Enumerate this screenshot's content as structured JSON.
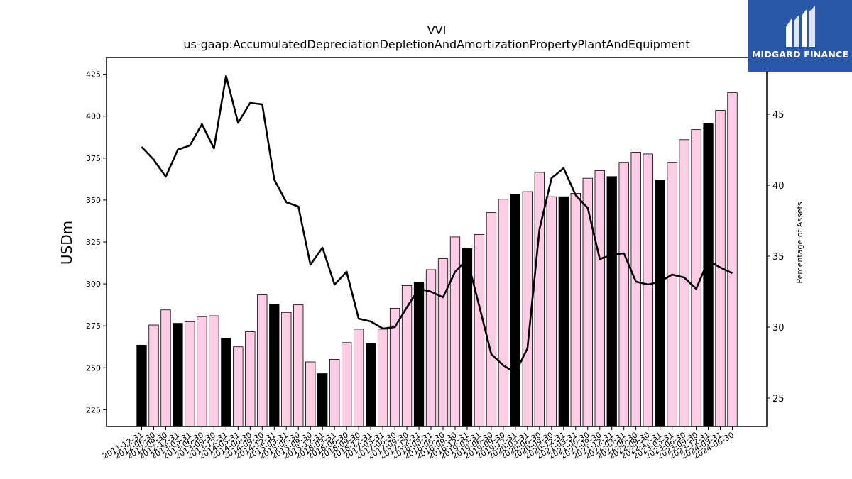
{
  "chart_data": {
    "type": "bar",
    "title": "VVI",
    "subtitle": "us-gaap:AccumulatedDepreciationDepletionAndAmortizationPropertyPlantAndEquipment",
    "ylabel": "USDm",
    "y2label": "Percentage of Assets",
    "ylim": [
      215,
      435
    ],
    "y2lim": [
      23,
      49
    ],
    "yticks": [
      225,
      250,
      275,
      300,
      325,
      350,
      375,
      400,
      425
    ],
    "y2ticks": [
      25,
      30,
      35,
      40,
      45
    ],
    "grid": false,
    "categories": [
      "2011-12-31",
      "2012-06-30",
      "2012-09-30",
      "2012-12-31",
      "2013-03-31",
      "2013-06-30",
      "2013-09-30",
      "2013-12-31",
      "2014-03-31",
      "2014-06-30",
      "2014-09-30",
      "2014-12-31",
      "2015-03-31",
      "2015-06-30",
      "2015-09-30",
      "2015-12-31",
      "2016-03-31",
      "2016-06-30",
      "2016-09-30",
      "2016-12-31",
      "2017-03-31",
      "2017-06-30",
      "2017-09-30",
      "2017-12-31",
      "2018-03-31",
      "2018-06-30",
      "2018-09-30",
      "2018-12-31",
      "2019-03-31",
      "2019-06-30",
      "2019-09-30",
      "2019-12-31",
      "2020-03-31",
      "2020-06-30",
      "2020-09-30",
      "2020-12-31",
      "2021-03-31",
      "2021-06-30",
      "2021-09-30",
      "2021-12-31",
      "2022-03-31",
      "2022-06-30",
      "2022-09-30",
      "2022-12-31",
      "2023-03-31",
      "2023-06-30",
      "2023-09-30",
      "2023-12-31",
      "2024-03-31",
      "2024-06-30"
    ],
    "xticklabels": [
      "2011-12-31",
      "2012-06-30",
      "2012-09-30",
      "2012-12-31",
      "2013-03-31",
      "2013-06-30",
      "2013-09-30",
      "2013-12-31",
      "2014-03-31",
      "2014-06-30",
      "2014-09-30",
      "2014-12-31",
      "2015-03-31",
      "2015-06-30",
      "2015-09-30",
      "2015-12-31",
      "2016-03-31",
      "2016-06-30",
      "2016-09-30",
      "2016-12-31",
      "2017-03-31",
      "2017-06-30",
      "2017-09-30",
      "2017-12-31",
      "2018-03-31",
      "2018-06-30",
      "2018-09-30",
      "2018-12-31",
      "2019-03-31",
      "2019-06-30",
      "2019-09-30",
      "2019-12-31",
      "2020-03-31",
      "2020-06-30",
      "2020-09-30",
      "2020-12-31",
      "2021-03-31",
      "2021-06-30",
      "2021-09-30",
      "2021-12-31",
      "2022-03-31",
      "2022-06-30",
      "2022-09-30",
      "2022-12-31",
      "2023-03-31",
      "2023-06-30",
      "2023-09-30",
      "2023-12-31",
      "2024-03-31",
      "2024-06-30"
    ],
    "series": [
      {
        "type": "bar",
        "axis": "left",
        "values": [
          263.5,
          275.5,
          284.5,
          276.5,
          277.5,
          280.5,
          281,
          267.5,
          262.5,
          271.5,
          293.5,
          288,
          283,
          287.5,
          253.5,
          246.5,
          255,
          265,
          273,
          264.5,
          273,
          285.5,
          299,
          301,
          308.5,
          315,
          328,
          321,
          329.5,
          342.5,
          350.5,
          353.5,
          355,
          366.5,
          352,
          352,
          354,
          363,
          367.5,
          364,
          372.5,
          378.5,
          377.5,
          362,
          372.5,
          386,
          392,
          395.5,
          403.5,
          414
        ],
        "colors": [
          "#000000",
          "#ffcce6",
          "#ffcce6",
          "#000000",
          "#ffcce6",
          "#ffcce6",
          "#ffcce6",
          "#000000",
          "#ffcce6",
          "#ffcce6",
          "#ffcce6",
          "#000000",
          "#ffcce6",
          "#ffcce6",
          "#ffcce6",
          "#000000",
          "#ffcce6",
          "#ffcce6",
          "#ffcce6",
          "#000000",
          "#ffcce6",
          "#ffcce6",
          "#ffcce6",
          "#000000",
          "#ffcce6",
          "#ffcce6",
          "#ffcce6",
          "#000000",
          "#ffcce6",
          "#ffcce6",
          "#ffcce6",
          "#000000",
          "#ffcce6",
          "#ffcce6",
          "#ffcce6",
          "#000000",
          "#ffcce6",
          "#ffcce6",
          "#ffcce6",
          "#000000",
          "#ffcce6",
          "#ffcce6",
          "#ffcce6",
          "#000000",
          "#ffcce6",
          "#ffcce6",
          "#ffcce6",
          "#000000",
          "#ffcce6",
          "#ffcce6"
        ]
      },
      {
        "type": "line",
        "axis": "right",
        "color": "#000000",
        "values": [
          42.7,
          41.8,
          40.6,
          42.5,
          42.8,
          44.3,
          42.6,
          47.7,
          44.4,
          45.8,
          45.7,
          40.4,
          38.8,
          38.5,
          34.4,
          35.6,
          33.0,
          33.9,
          30.6,
          30.4,
          29.9,
          30.0,
          31.4,
          32.7,
          32.5,
          32.1,
          33.9,
          34.8,
          31.5,
          28.1,
          27.3,
          26.8,
          28.5,
          36.9,
          40.5,
          41.2,
          39.3,
          38.4,
          34.8,
          35.1,
          35.2,
          33.2,
          33.0,
          33.2,
          33.7,
          33.5,
          32.7,
          34.7,
          34.2,
          33.8
        ]
      }
    ]
  },
  "logo": {
    "text": "MIDGARD FINANCE",
    "color": "#2a58a8"
  }
}
